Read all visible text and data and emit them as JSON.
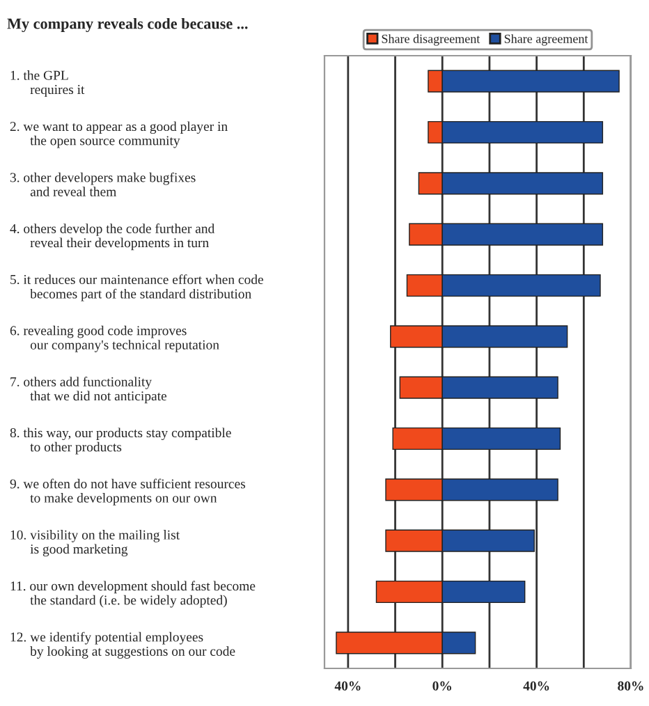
{
  "chart_data": {
    "type": "bar",
    "orientation": "horizontal",
    "stacked": true,
    "title": "My company reveals code because ...",
    "categories": [
      "1. the GPL\n      requires it",
      "2. we want to appear as a good player in\n      the open source community",
      "3. other developers make bugfixes\n      and reveal them",
      "4. others develop the code further and\n      reveal their developments in turn",
      "5. it reduces our maintenance effort when code\n      becomes part of the standard distribution",
      "6. revealing good code improves\n      our company's technical reputation",
      "7. others add functionality\n      that we did not anticipate",
      "8. this way, our products stay compatible\n      to other products",
      "9. we often do not have sufficient resources\n      to make developments on our own",
      "10. visibility on the mailing list\n      is good marketing",
      "11. our own development should fast become\n      the standard (i.e. be widely adopted)",
      "12. we identify potential employees\n      by looking at suggestions on our code"
    ],
    "series": [
      {
        "name": "Share disagreement",
        "color": "#f04a1c",
        "values": [
          -6,
          -6,
          -10,
          -14,
          -15,
          -22,
          -18,
          -21,
          -24,
          -24,
          -28,
          -45
        ]
      },
      {
        "name": "Share agreement",
        "color": "#1f4f9e",
        "values": [
          75,
          68,
          68,
          68,
          67,
          53,
          49,
          50,
          49,
          39,
          35,
          14
        ]
      }
    ],
    "xlim": [
      -50,
      80
    ],
    "xticks": [
      {
        "value": -40,
        "label": "40%"
      },
      {
        "value": -20,
        "label": null
      },
      {
        "value": 0,
        "label": "0%"
      },
      {
        "value": 20,
        "label": null
      },
      {
        "value": 40,
        "label": "40%"
      },
      {
        "value": 60,
        "label": null
      },
      {
        "value": 80,
        "label": "80%"
      }
    ],
    "grid": "x",
    "legend": "top"
  }
}
